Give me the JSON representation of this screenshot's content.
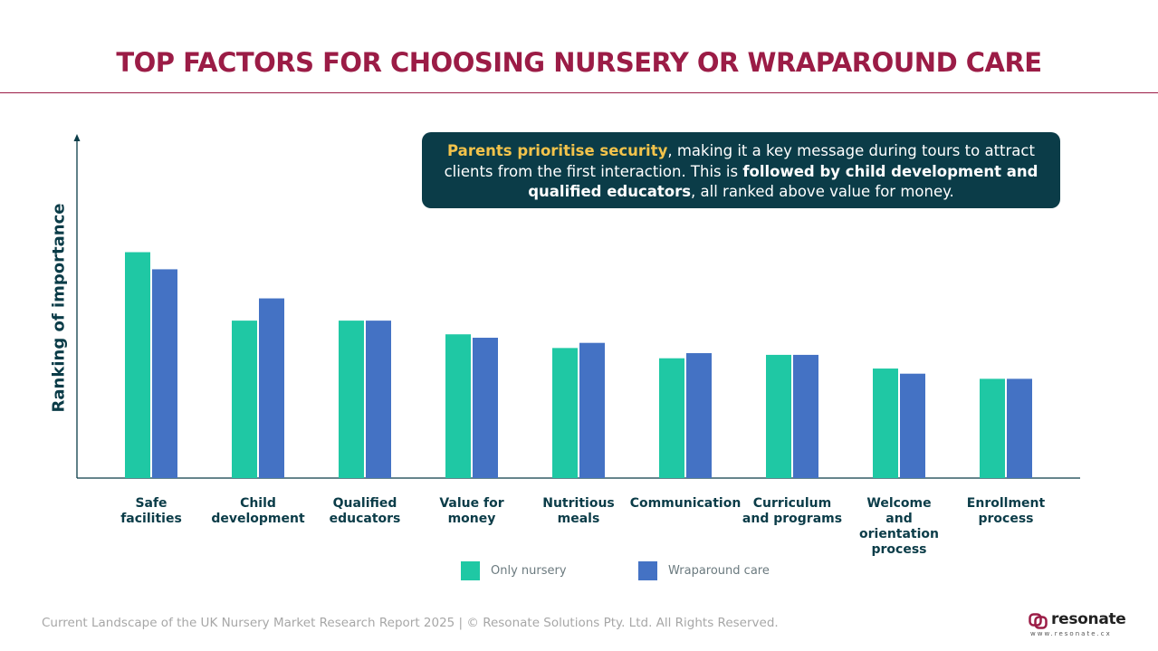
{
  "title": "TOP FACTORS FOR CHOOSING NURSERY OR WRAPAROUND CARE",
  "callout": {
    "highlight": "Parents prioritise security",
    "text1": ", making it a key message during tours to attract clients from the first interaction. This is ",
    "bold": "followed by child development and qualified educators",
    "text2": ", all ranked above value for money."
  },
  "colors": {
    "title": "#9b1c46",
    "callout_bg": "#0b3c48",
    "highlight": "#f3c34b",
    "only_nursery": "#1fc8a4",
    "wraparound": "#4472c4"
  },
  "chart_data": {
    "type": "bar",
    "ylabel": "Ranking of importance",
    "ylim": [
      0,
      100
    ],
    "categories": [
      [
        "Safe",
        "facilities"
      ],
      [
        "Child",
        "development"
      ],
      [
        "Qualified",
        "educators"
      ],
      [
        "Value for",
        "money"
      ],
      [
        "Nutritious",
        "meals"
      ],
      [
        "Communication"
      ],
      [
        "Curriculum",
        "and programs"
      ],
      [
        "Welcome",
        "and",
        "orientation",
        "process"
      ],
      [
        "Enrollment",
        "process"
      ]
    ],
    "series": [
      {
        "name": "Only nursery",
        "values": [
          66,
          46,
          46,
          42,
          38,
          35,
          36,
          32,
          29
        ]
      },
      {
        "name": "Wraparound care",
        "values": [
          61,
          52.5,
          46,
          41,
          39.5,
          36.5,
          36,
          30.5,
          29
        ]
      }
    ],
    "grid": false,
    "legend": "bottom-center"
  },
  "footer": "Current Landscape of the UK Nursery Market Research Report 2025 | © Resonate Solutions Pty. Ltd. All Rights Reserved.",
  "logo": {
    "word": "resonate",
    "url": "www.resonate.cx",
    "icon": "resonate-logo-icon"
  }
}
